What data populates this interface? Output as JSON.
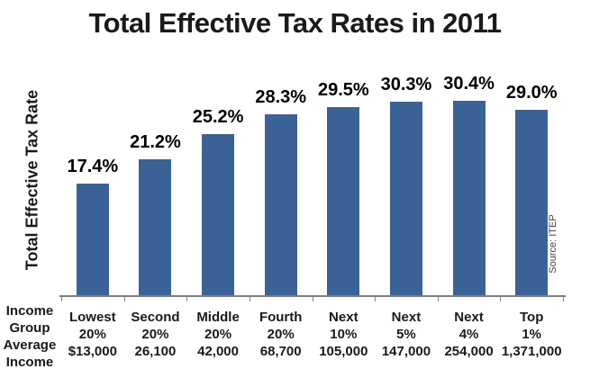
{
  "title": "Total Effective Tax Rates in 2011",
  "y_axis_label": "Total Effective Tax Rate",
  "source_note": "Source: ITEP",
  "colors": {
    "bar": "#3A6297",
    "axis": "#7F7F7F",
    "text": "#1A1A1A"
  },
  "x_axis": {
    "header_lines": [
      "Income",
      "Group",
      "Average",
      "Income"
    ],
    "columns": [
      {
        "group": "Lowest",
        "share": "20%",
        "income": "$13,000"
      },
      {
        "group": "Second",
        "share": "20%",
        "income": "26,100"
      },
      {
        "group": "Middle",
        "share": "20%",
        "income": "42,000"
      },
      {
        "group": "Fourth",
        "share": "20%",
        "income": "68,700"
      },
      {
        "group": "Next",
        "share": "10%",
        "income": "105,000"
      },
      {
        "group": "Next",
        "share": "5%",
        "income": "147,000"
      },
      {
        "group": "Next",
        "share": "4%",
        "income": "254,000"
      },
      {
        "group": "Top",
        "share": "1%",
        "income": "1,371,000"
      }
    ]
  },
  "chart_data": {
    "type": "bar",
    "title": "Total Effective Tax Rates in 2011",
    "ylabel": "Total Effective Tax Rate",
    "xlabel": "Income Group / Average Income",
    "categories": [
      "Lowest 20%",
      "Second 20%",
      "Middle 20%",
      "Fourth 20%",
      "Next 10%",
      "Next 5%",
      "Next 4%",
      "Top 1%"
    ],
    "values": [
      17.4,
      21.2,
      25.2,
      28.3,
      29.5,
      30.3,
      30.4,
      29.0
    ],
    "value_labels": [
      "17.4%",
      "21.2%",
      "25.2%",
      "28.3%",
      "29.5%",
      "30.3%",
      "30.4%",
      "29.0%"
    ],
    "average_income": [
      "$13,000",
      "26,100",
      "42,000",
      "68,700",
      "105,000",
      "147,000",
      "254,000",
      "1,371,000"
    ],
    "ylim": [
      0,
      35
    ],
    "grid": false,
    "legend": "none",
    "bar_color": "#3A6297",
    "source": "Source: ITEP"
  }
}
